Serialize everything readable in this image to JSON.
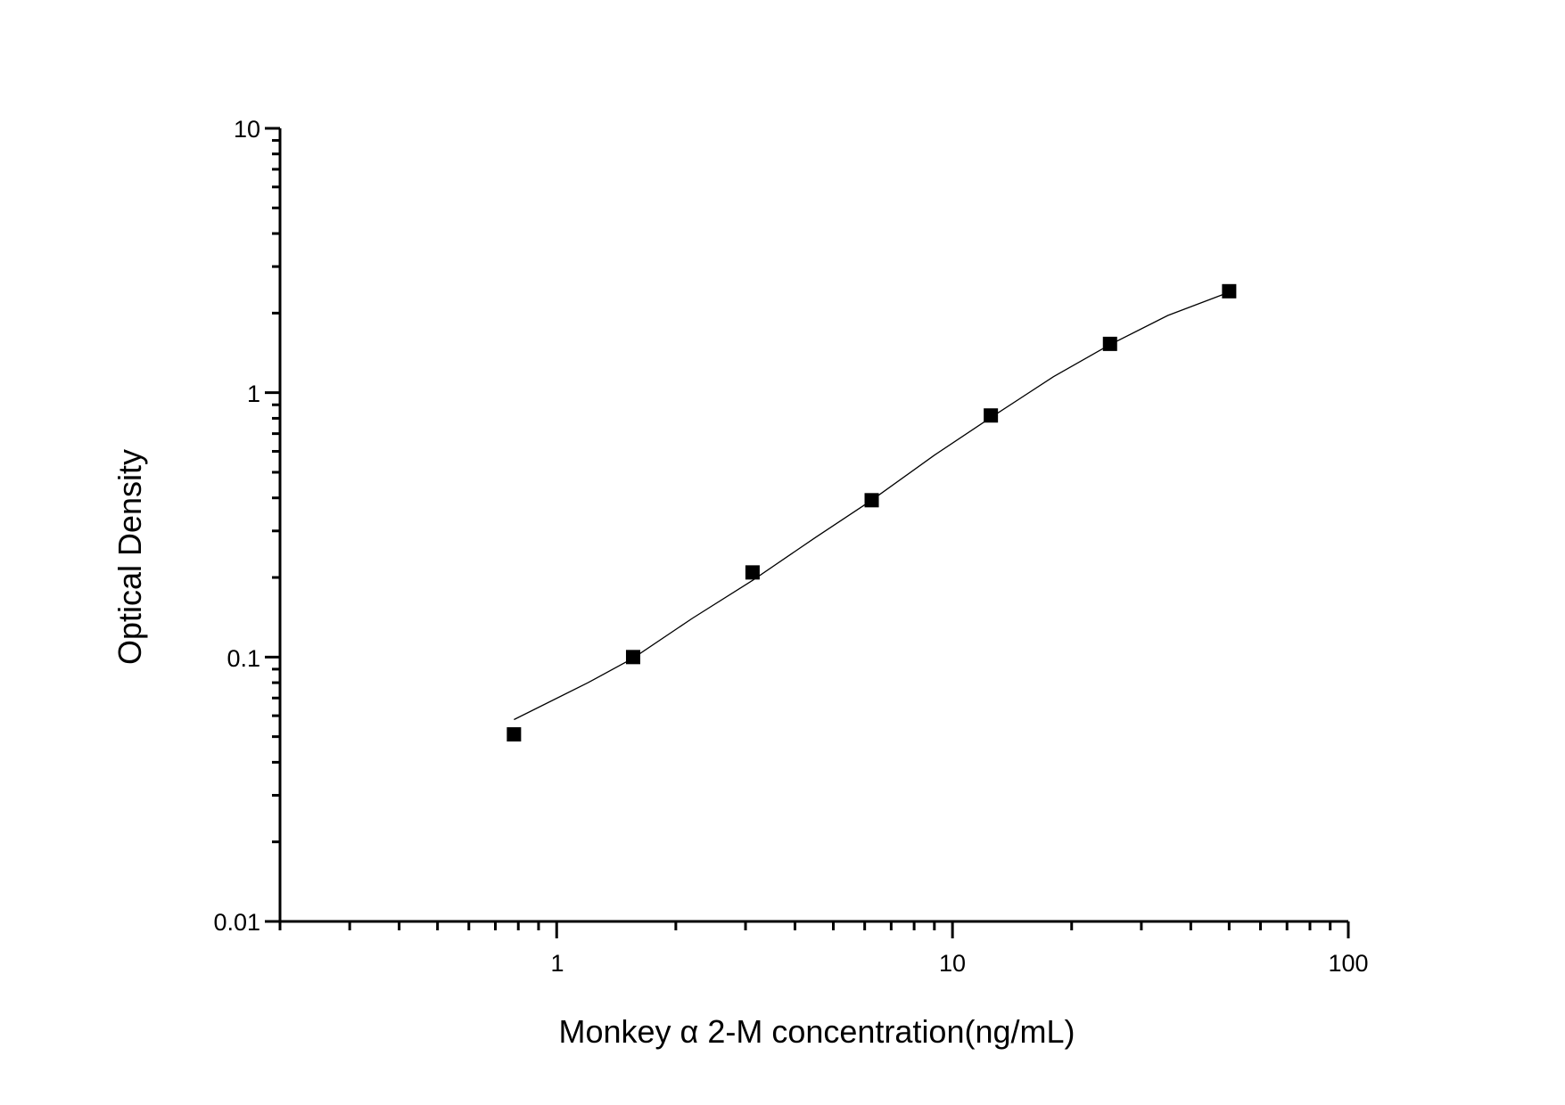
{
  "chart_data": {
    "type": "scatter",
    "title": "",
    "xlabel": "Monkey α 2-M concentration(ng/mL)",
    "ylabel": "Optical Density",
    "xscale": "log",
    "yscale": "log",
    "xlim": [
      0.2,
      100
    ],
    "ylim": [
      0.01,
      10
    ],
    "x_ticks": [
      {
        "value": 1,
        "label": "1"
      },
      {
        "value": 10,
        "label": "10"
      },
      {
        "value": 100,
        "label": "100"
      }
    ],
    "y_ticks": [
      {
        "value": 0.01,
        "label": "0.01"
      },
      {
        "value": 0.1,
        "label": "0.1"
      },
      {
        "value": 1,
        "label": "1"
      },
      {
        "value": 10,
        "label": "10"
      }
    ],
    "grid": false,
    "legend": null,
    "series": [
      {
        "name": "Standard points",
        "marker": "filled-square",
        "color": "#000000",
        "x": [
          0.78,
          1.56,
          3.125,
          6.25,
          12.5,
          25,
          50
        ],
        "y": [
          0.051,
          0.1,
          0.209,
          0.392,
          0.82,
          1.53,
          2.42
        ]
      },
      {
        "name": "Fitted curve",
        "style": "line",
        "color": "#000000",
        "x": [
          0.78,
          1.2,
          1.56,
          2.2,
          3.125,
          4.5,
          6.25,
          9,
          12.5,
          18,
          25,
          35,
          50
        ],
        "y": [
          0.058,
          0.08,
          0.099,
          0.14,
          0.195,
          0.283,
          0.392,
          0.58,
          0.805,
          1.15,
          1.52,
          1.96,
          2.4
        ]
      }
    ]
  },
  "labels": {
    "xlabel": "Monkey α 2-M concentration(ng/mL)",
    "ylabel": "Optical Density",
    "x_tick_1": "1",
    "x_tick_10": "10",
    "x_tick_100": "100",
    "y_tick_001": "0.01",
    "y_tick_01": "0.1",
    "y_tick_1": "1",
    "y_tick_10": "10"
  }
}
